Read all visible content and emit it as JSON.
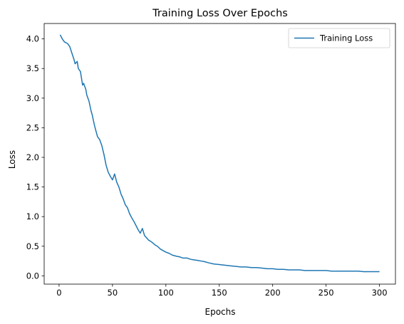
{
  "chart_data": {
    "type": "line",
    "title": "Training Loss Over Epochs",
    "xlabel": "Epochs",
    "ylabel": "Loss",
    "xlim": [
      -13.95,
      314.95
    ],
    "ylim": [
      -0.14,
      4.26
    ],
    "x_ticks": [
      0,
      50,
      100,
      150,
      200,
      250,
      300
    ],
    "x_tick_labels": [
      "0",
      "50",
      "100",
      "150",
      "200",
      "250",
      "300"
    ],
    "y_ticks": [
      0.0,
      0.5,
      1.0,
      1.5,
      2.0,
      2.5,
      3.0,
      3.5,
      4.0
    ],
    "y_tick_labels": [
      "0.0",
      "0.5",
      "1.0",
      "1.5",
      "2.0",
      "2.5",
      "3.0",
      "3.5",
      "4.0"
    ],
    "grid": false,
    "legend": {
      "position": "top-right",
      "entries": [
        "Training Loss"
      ]
    },
    "series": [
      {
        "name": "Training Loss",
        "color": "#1f77b4",
        "x": [
          1,
          3,
          5,
          8,
          10,
          12,
          14,
          15,
          17,
          18,
          20,
          22,
          23,
          25,
          26,
          28,
          30,
          31,
          33,
          34,
          36,
          38,
          40,
          42,
          44,
          46,
          48,
          50,
          52,
          54,
          56,
          58,
          60,
          62,
          64,
          66,
          68,
          70,
          72,
          74,
          76,
          78,
          80,
          82,
          84,
          86,
          88,
          90,
          92,
          95,
          98,
          100,
          103,
          106,
          110,
          113,
          116,
          120,
          123,
          126,
          130,
          133,
          136,
          140,
          145,
          150,
          155,
          160,
          165,
          170,
          175,
          180,
          185,
          190,
          195,
          200,
          205,
          210,
          215,
          220,
          225,
          230,
          235,
          240,
          245,
          250,
          255,
          260,
          265,
          270,
          275,
          280,
          285,
          290,
          295,
          300
        ],
        "y": [
          4.07,
          4.0,
          3.95,
          3.92,
          3.87,
          3.76,
          3.65,
          3.58,
          3.62,
          3.5,
          3.45,
          3.22,
          3.25,
          3.15,
          3.05,
          2.95,
          2.78,
          2.72,
          2.55,
          2.48,
          2.35,
          2.3,
          2.2,
          2.05,
          1.87,
          1.75,
          1.68,
          1.62,
          1.72,
          1.58,
          1.5,
          1.38,
          1.3,
          1.2,
          1.15,
          1.05,
          0.98,
          0.92,
          0.85,
          0.78,
          0.72,
          0.8,
          0.68,
          0.64,
          0.6,
          0.58,
          0.55,
          0.52,
          0.5,
          0.45,
          0.42,
          0.4,
          0.38,
          0.35,
          0.33,
          0.32,
          0.3,
          0.3,
          0.28,
          0.27,
          0.26,
          0.25,
          0.24,
          0.22,
          0.2,
          0.19,
          0.18,
          0.17,
          0.16,
          0.15,
          0.15,
          0.14,
          0.14,
          0.13,
          0.12,
          0.12,
          0.11,
          0.11,
          0.1,
          0.1,
          0.1,
          0.09,
          0.09,
          0.09,
          0.09,
          0.09,
          0.08,
          0.08,
          0.08,
          0.08,
          0.08,
          0.08,
          0.07,
          0.07,
          0.07,
          0.07
        ]
      }
    ]
  }
}
